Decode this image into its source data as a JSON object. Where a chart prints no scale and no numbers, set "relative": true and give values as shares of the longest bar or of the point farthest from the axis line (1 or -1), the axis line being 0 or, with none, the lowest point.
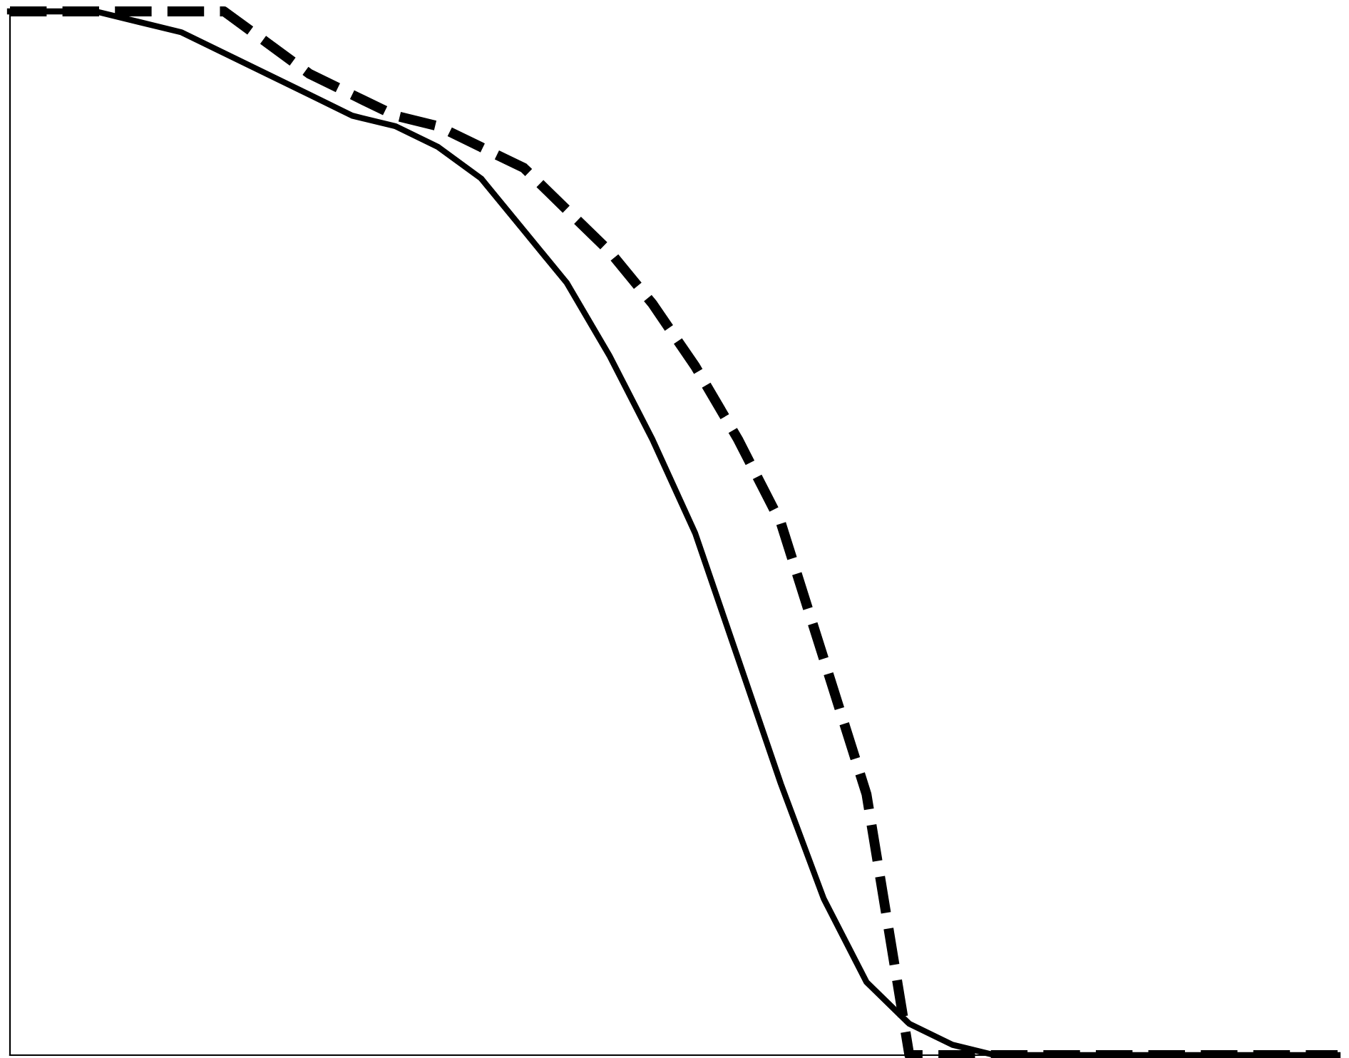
{
  "chart_data": {
    "type": "line",
    "relative": true,
    "marker": "none",
    "categories": [
      null,
      null,
      null,
      null,
      null,
      null,
      null,
      null,
      null,
      null,
      null,
      null,
      null,
      null,
      null,
      null,
      null,
      null,
      null,
      null,
      null,
      null,
      null,
      null,
      null,
      null,
      null,
      null,
      null,
      null,
      null,
      null
    ],
    "series": [
      {
        "color": "#000000",
        "line_style": "solid",
        "values": [
          1,
          1,
          1,
          0.99,
          0.98,
          0.96,
          0.94,
          0.92,
          0.9,
          0.89,
          0.87,
          0.84,
          0.79,
          0.74,
          0.67,
          0.59,
          0.5,
          0.38,
          0.26,
          0.15,
          0.07,
          0.03,
          0.01,
          0,
          0,
          0,
          0,
          0,
          0,
          0,
          0,
          0
        ]
      },
      {
        "color": "#000000",
        "line_style": "dashed",
        "values": [
          1,
          1,
          1,
          1,
          1,
          1,
          0.97,
          0.94,
          0.92,
          0.9,
          0.89,
          0.87,
          0.85,
          0.81,
          0.77,
          0.72,
          0.66,
          0.59,
          0.51,
          0.38,
          0.25,
          0,
          0,
          0,
          0,
          0,
          0,
          0,
          0,
          0,
          0,
          0
        ]
      }
    ]
  }
}
